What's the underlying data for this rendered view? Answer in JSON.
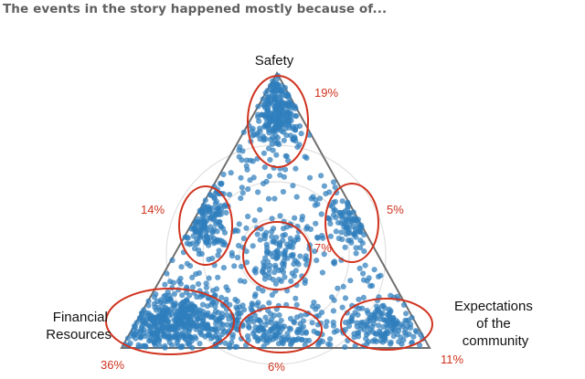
{
  "title": "The events in the story happened mostly because of...",
  "colors": {
    "dots": "#2f7ebc",
    "highlight": "#d0331f",
    "frame": "#6f6f6f",
    "grid": "#e0e0e0",
    "title": "#5f5f5f"
  },
  "chart_data": {
    "type": "ternary-scatter",
    "title": "The events in the story happened mostly because of...",
    "vertices": {
      "top": "Safety",
      "left": [
        "Financial",
        "Resources"
      ],
      "right": [
        "Expectations",
        "of the",
        "community"
      ]
    },
    "regions": [
      {
        "name": "Safety",
        "percent": "19%"
      },
      {
        "name": "Safety + Expectations of the community",
        "percent": "5%"
      },
      {
        "name": "Financial Resources + Safety",
        "percent": "14%"
      },
      {
        "name": "Center (balanced)",
        "percent": "7%"
      },
      {
        "name": "Financial Resources",
        "percent": "36%"
      },
      {
        "name": "Financial Resources + Expectations of the community",
        "percent": "6%"
      },
      {
        "name": "Expectations of the community",
        "percent": "11%"
      }
    ],
    "grid": true,
    "legend": "none"
  }
}
